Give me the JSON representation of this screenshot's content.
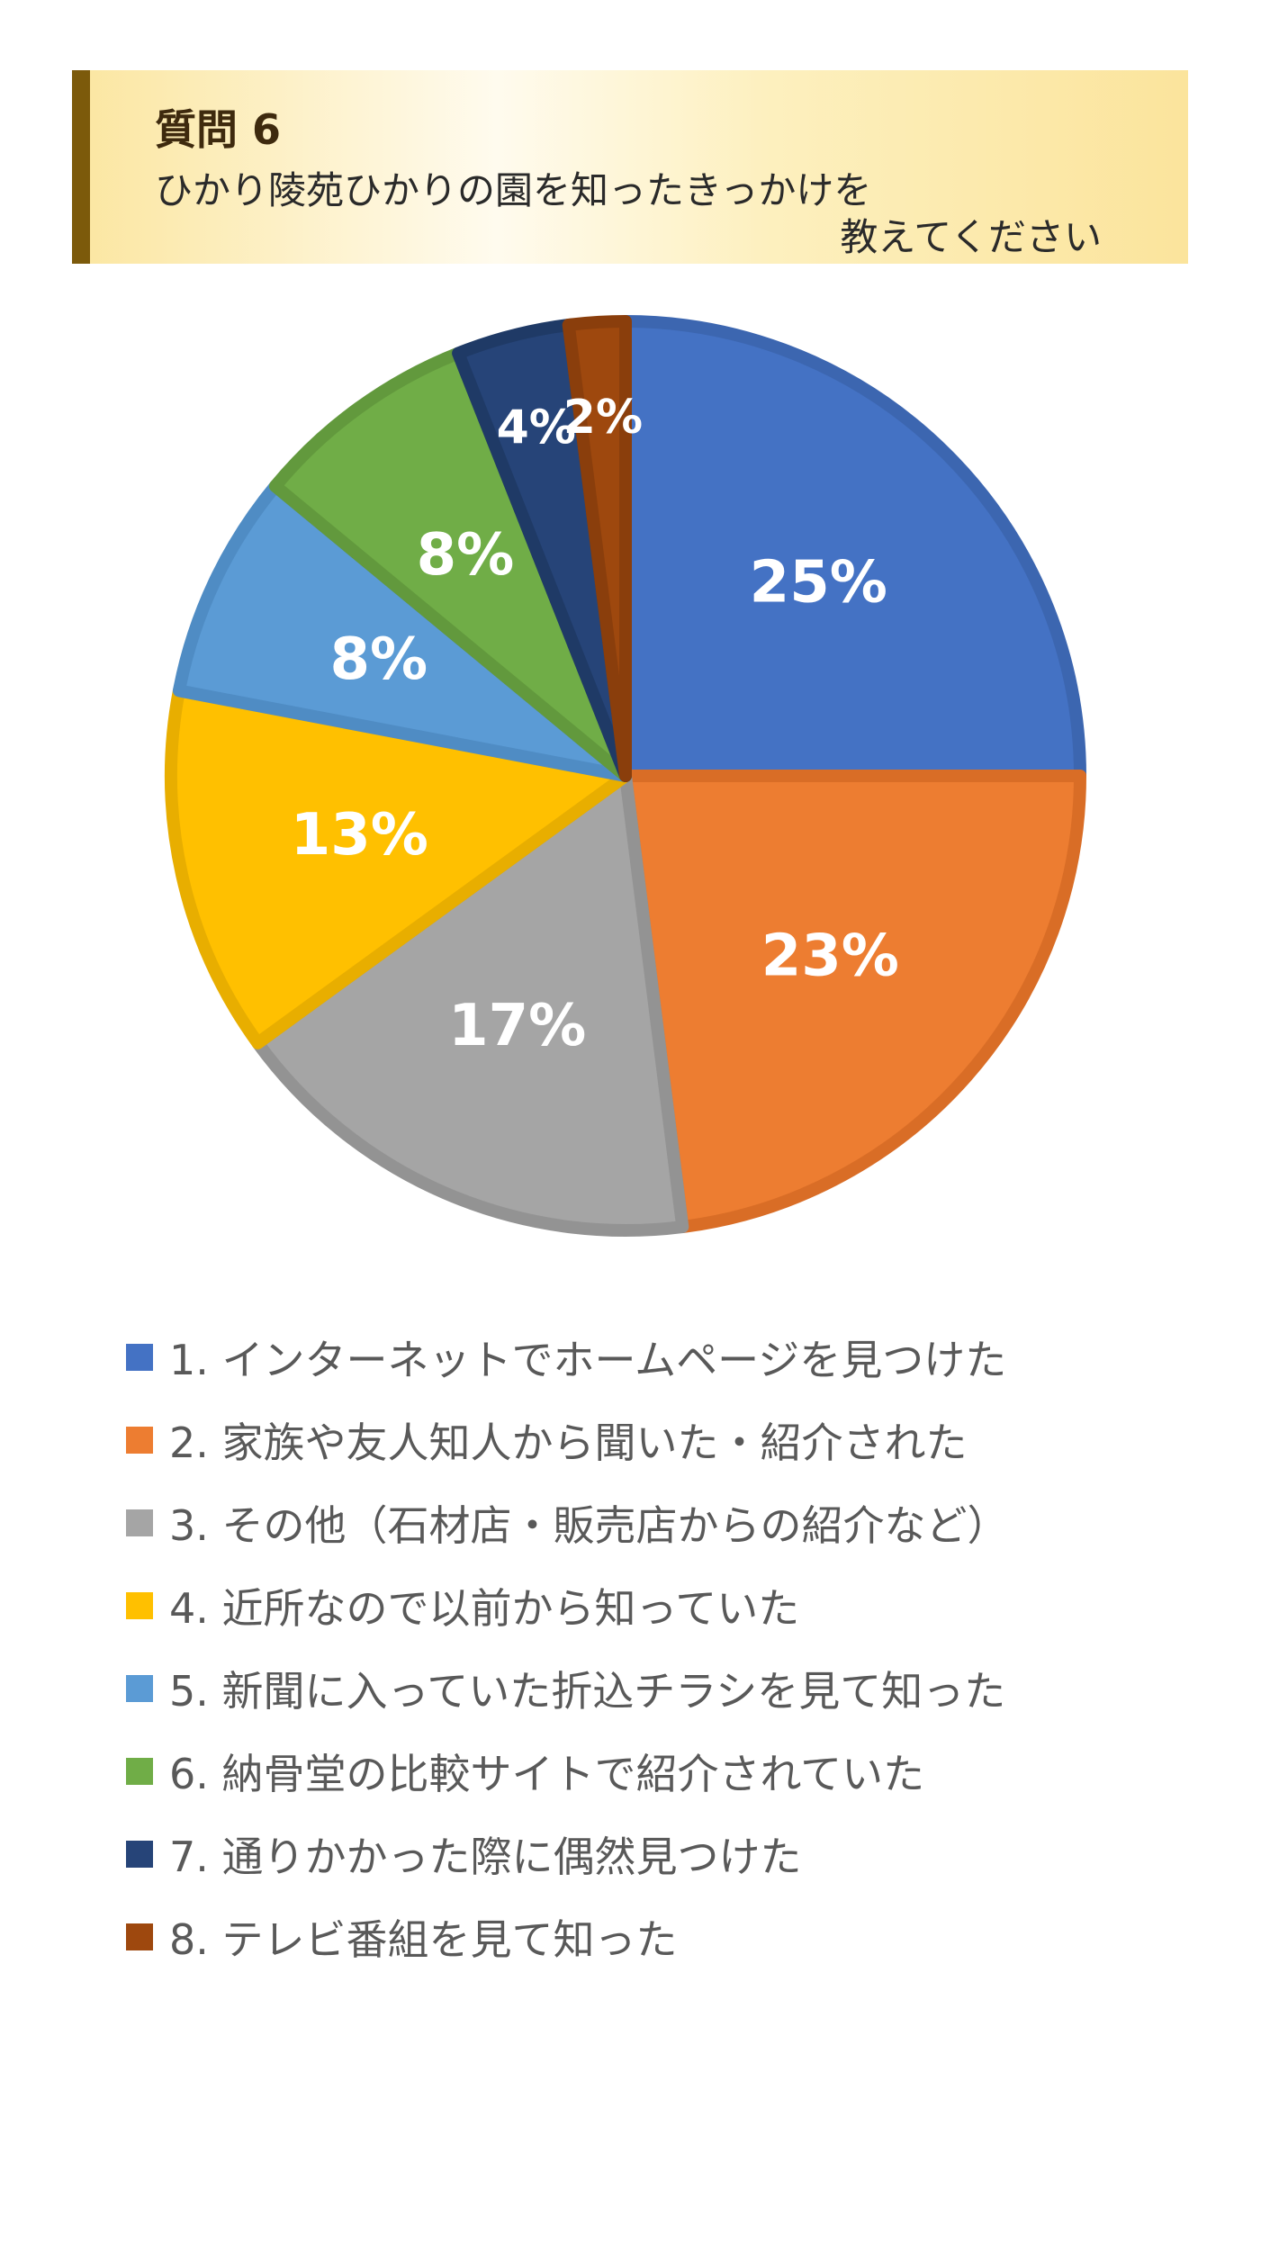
{
  "header": {
    "question_label": "質問 6",
    "question_line1": "ひかり陵苑ひかりの園を知ったきっかけを",
    "question_line2": "教えてください"
  },
  "chart_data": {
    "type": "pie",
    "categories": [
      "1. インターネットでホームページを見つけた",
      "2. 家族や友人知人から聞いた・紹介された",
      "3. その他（石材店・販売店からの紹介など）",
      "4. 近所なので以前から知っていた",
      "5. 新聞に入っていた折込チラシを見て知った",
      "6. 納骨堂の比較サイトで紹介されていた",
      "7. 通りかかった際に偶然見つけた",
      "8. テレビ番組を見て知った"
    ],
    "values": [
      25,
      23,
      17,
      13,
      8,
      8,
      4,
      2
    ],
    "labels": [
      "25%",
      "23%",
      "17%",
      "13%",
      "8%",
      "8%",
      "4%",
      "2%"
    ],
    "colors": [
      "#4472c4",
      "#ed7d31",
      "#a5a5a5",
      "#ffc000",
      "#5b9bd5",
      "#70ad47",
      "#264478",
      "#9e480e"
    ],
    "border_colors": [
      "#3c66b0",
      "#d96d26",
      "#939393",
      "#e8ae00",
      "#4f8cc4",
      "#62993d",
      "#1f3a66",
      "#8a3e0c"
    ],
    "start": "12 o'clock",
    "direction": "clockwise",
    "legend_position": "bottom"
  }
}
